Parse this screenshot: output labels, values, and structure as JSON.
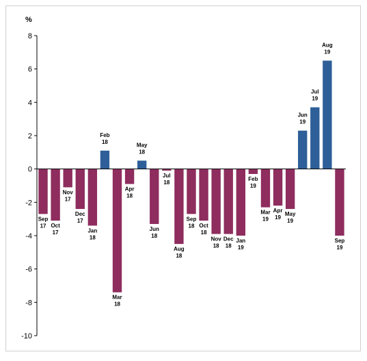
{
  "chart_data": {
    "type": "bar",
    "unit_label": "%",
    "ylim": [
      -10,
      8
    ],
    "y_ticks": [
      "8",
      "6",
      "4",
      "2",
      "0",
      "-2",
      "-4",
      "-6",
      "-8",
      "-10"
    ],
    "grid": false,
    "legend": "none",
    "colors": {
      "positive": "#2e5f99",
      "negative": "#8e2d5e"
    },
    "categories": [
      [
        "Sep",
        "17"
      ],
      [
        "Oct",
        "17"
      ],
      [
        "Nov",
        "17"
      ],
      [
        "Dec",
        "17"
      ],
      [
        "Jan",
        "18"
      ],
      [
        "Feb",
        "18"
      ],
      [
        "Mar",
        "18"
      ],
      [
        "Apr",
        "18"
      ],
      [
        "May",
        "18"
      ],
      [
        "Jun",
        "18"
      ],
      [
        "Jul",
        "18"
      ],
      [
        "Aug",
        "18"
      ],
      [
        "Sep",
        "18"
      ],
      [
        "Oct",
        "18"
      ],
      [
        "Nov",
        "18"
      ],
      [
        "Dec",
        "18"
      ],
      [
        "Jan",
        "19"
      ],
      [
        "Feb",
        "19"
      ],
      [
        "Mar",
        "19"
      ],
      [
        "Apr",
        "19"
      ],
      [
        "May",
        "19"
      ],
      [
        "Jun",
        "19"
      ],
      [
        "Jul",
        "19"
      ],
      [
        "Aug",
        "19"
      ],
      [
        "Sep",
        "19"
      ]
    ],
    "values": [
      -2.7,
      -3.1,
      -1.1,
      -2.4,
      -3.4,
      1.1,
      -7.4,
      -0.9,
      0.5,
      -3.3,
      -0.1,
      -4.5,
      -2.7,
      -3.1,
      -3.9,
      -3.9,
      -4.0,
      -0.3,
      -2.3,
      -2.2,
      -2.4,
      2.3,
      3.7,
      6.5,
      -4.0
    ]
  }
}
